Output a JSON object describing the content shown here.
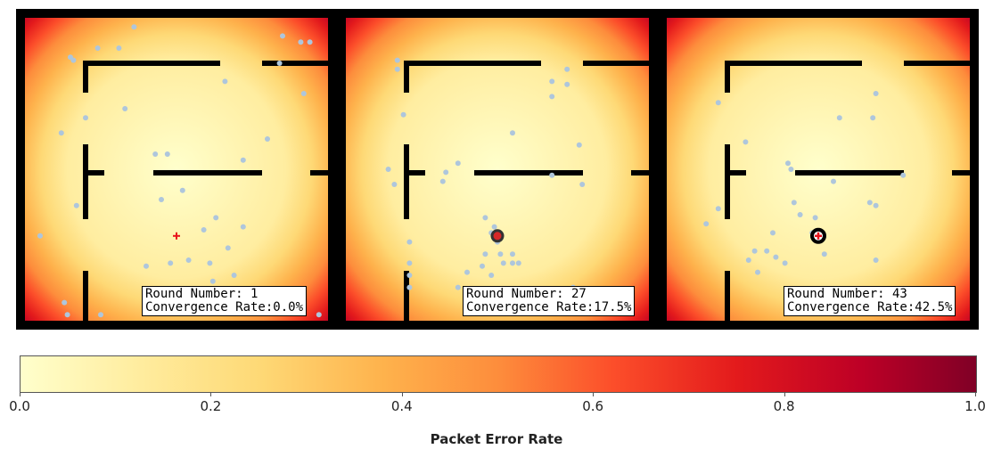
{
  "panels": [
    {
      "round_text": "Round Number: 1",
      "rate_text": "Convergence Rate:0.0%",
      "bs_marker": "small-red-cross",
      "devices": [
        [
          0.16,
          0.14
        ],
        [
          0.24,
          0.1
        ],
        [
          0.31,
          0.1
        ],
        [
          0.36,
          0.03
        ],
        [
          0.15,
          0.13
        ],
        [
          0.85,
          0.06
        ],
        [
          0.91,
          0.08
        ],
        [
          0.94,
          0.08
        ],
        [
          0.84,
          0.15
        ],
        [
          0.92,
          0.25
        ],
        [
          0.66,
          0.21
        ],
        [
          0.33,
          0.3
        ],
        [
          0.2,
          0.33
        ],
        [
          0.12,
          0.38
        ],
        [
          0.43,
          0.45
        ],
        [
          0.47,
          0.45
        ],
        [
          0.72,
          0.47
        ],
        [
          0.8,
          0.4
        ],
        [
          0.52,
          0.57
        ],
        [
          0.17,
          0.62
        ],
        [
          0.45,
          0.6
        ],
        [
          0.63,
          0.66
        ],
        [
          0.59,
          0.7
        ],
        [
          0.72,
          0.69
        ],
        [
          0.05,
          0.72
        ],
        [
          0.67,
          0.76
        ],
        [
          0.54,
          0.8
        ],
        [
          0.61,
          0.81
        ],
        [
          0.4,
          0.82
        ],
        [
          0.48,
          0.81
        ],
        [
          0.69,
          0.85
        ],
        [
          0.62,
          0.87
        ],
        [
          0.73,
          0.9
        ],
        [
          0.13,
          0.94
        ],
        [
          0.14,
          0.98
        ],
        [
          0.25,
          0.98
        ],
        [
          0.97,
          0.98
        ]
      ],
      "bs": [
        0.5,
        0.72
      ]
    },
    {
      "round_text": "Round Number: 27",
      "rate_text": "Convergence Rate:17.5%",
      "bs_marker": "large-black-circle",
      "devices": [
        [
          0.17,
          0.14
        ],
        [
          0.17,
          0.17
        ],
        [
          0.73,
          0.17
        ],
        [
          0.73,
          0.22
        ],
        [
          0.68,
          0.21
        ],
        [
          0.68,
          0.26
        ],
        [
          0.19,
          0.32
        ],
        [
          0.55,
          0.38
        ],
        [
          0.77,
          0.42
        ],
        [
          0.37,
          0.48
        ],
        [
          0.33,
          0.51
        ],
        [
          0.14,
          0.5
        ],
        [
          0.68,
          0.52
        ],
        [
          0.16,
          0.55
        ],
        [
          0.32,
          0.54
        ],
        [
          0.78,
          0.55
        ],
        [
          0.46,
          0.66
        ],
        [
          0.49,
          0.69
        ],
        [
          0.48,
          0.71
        ],
        [
          0.5,
          0.74
        ],
        [
          0.21,
          0.74
        ],
        [
          0.51,
          0.78
        ],
        [
          0.55,
          0.78
        ],
        [
          0.46,
          0.78
        ],
        [
          0.52,
          0.81
        ],
        [
          0.55,
          0.81
        ],
        [
          0.45,
          0.82
        ],
        [
          0.57,
          0.81
        ],
        [
          0.21,
          0.81
        ],
        [
          0.48,
          0.85
        ],
        [
          0.4,
          0.84
        ],
        [
          0.21,
          0.85
        ],
        [
          0.37,
          0.89
        ],
        [
          0.21,
          0.89
        ],
        [
          0.75,
          0.89
        ]
      ],
      "bs": [
        0.5,
        0.72
      ]
    },
    {
      "round_text": "Round Number: 43",
      "rate_text": "Convergence Rate:42.5%",
      "bs_marker": "large-black-circle-red-cross",
      "devices": [
        [
          0.17,
          0.28
        ],
        [
          0.69,
          0.25
        ],
        [
          0.68,
          0.33
        ],
        [
          0.57,
          0.33
        ],
        [
          0.26,
          0.41
        ],
        [
          0.4,
          0.48
        ],
        [
          0.41,
          0.5
        ],
        [
          0.78,
          0.52
        ],
        [
          0.55,
          0.54
        ],
        [
          0.42,
          0.61
        ],
        [
          0.17,
          0.63
        ],
        [
          0.44,
          0.65
        ],
        [
          0.67,
          0.61
        ],
        [
          0.69,
          0.62
        ],
        [
          0.13,
          0.68
        ],
        [
          0.49,
          0.66
        ],
        [
          0.35,
          0.71
        ],
        [
          0.48,
          0.71
        ],
        [
          0.33,
          0.77
        ],
        [
          0.29,
          0.77
        ],
        [
          0.36,
          0.79
        ],
        [
          0.27,
          0.8
        ],
        [
          0.39,
          0.81
        ],
        [
          0.52,
          0.78
        ],
        [
          0.69,
          0.8
        ],
        [
          0.3,
          0.84
        ]
      ],
      "bs": [
        0.5,
        0.72
      ]
    }
  ],
  "colorbar": {
    "label": "Packet Error Rate",
    "range": [
      0.0,
      1.0
    ],
    "ticks": [
      "0.0",
      "0.2",
      "0.4",
      "0.6",
      "0.8",
      "1.0"
    ],
    "tick_values": [
      0.0,
      0.2,
      0.4,
      0.6,
      0.8,
      1.0
    ],
    "colors": [
      "#ffffcc",
      "#ffeda0",
      "#fed976",
      "#feb24c",
      "#fd8d3c",
      "#fc4e2a",
      "#e31a1c",
      "#bd0026",
      "#800026"
    ]
  },
  "colors": {
    "device": "#aec6dc",
    "wall": "#000000",
    "bs_cross": "#e8141c",
    "bs_circle_fill": "#d62728"
  }
}
